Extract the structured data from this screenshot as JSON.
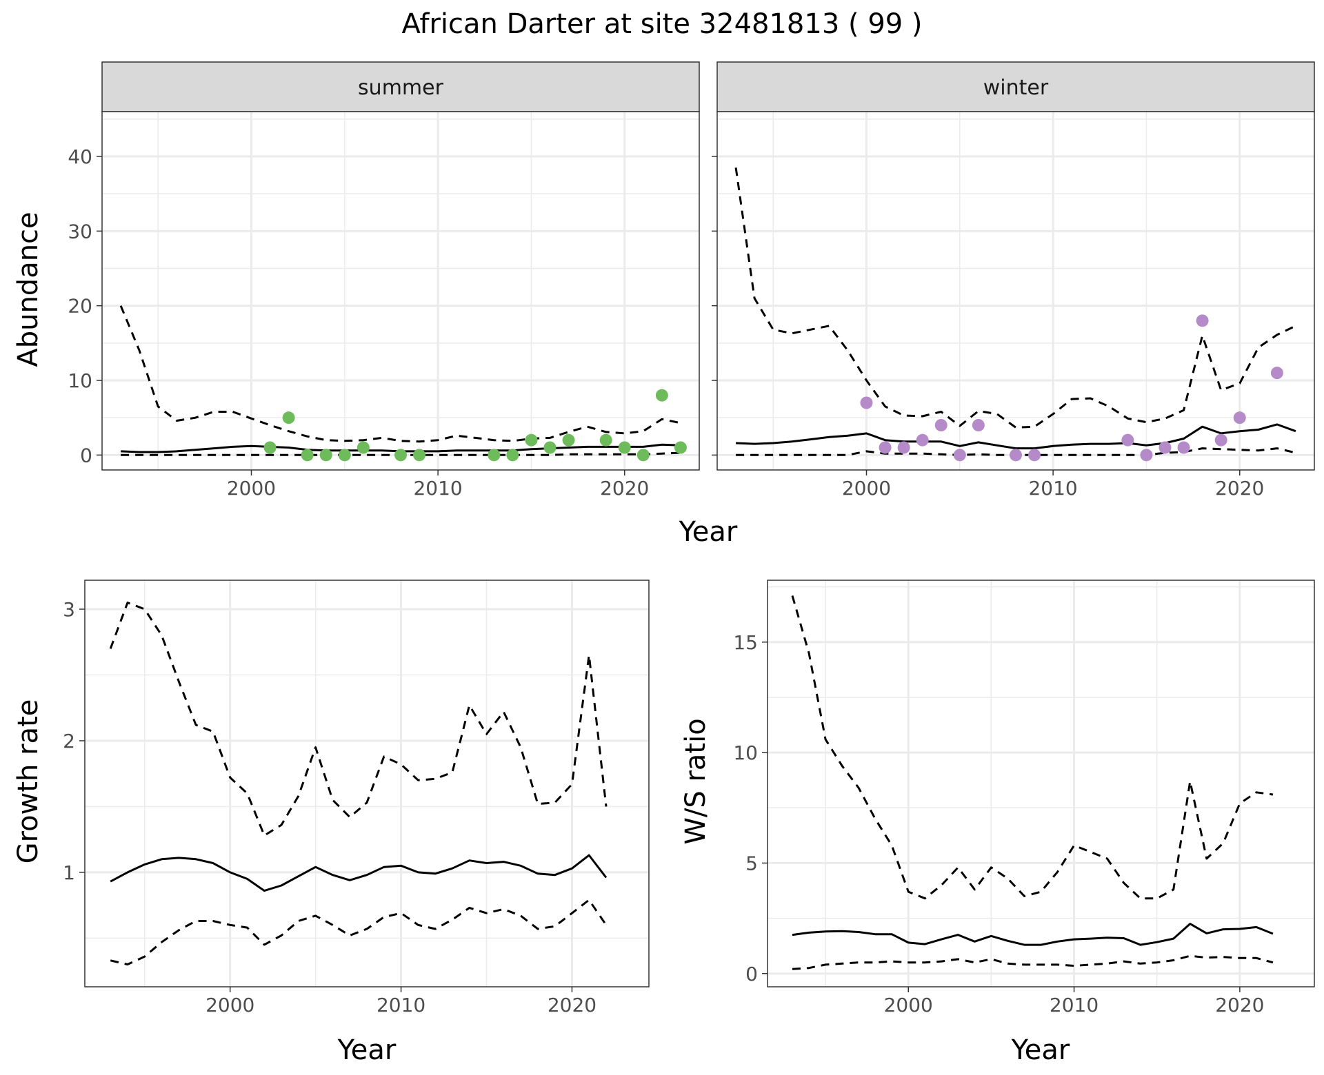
{
  "figure": {
    "title": "African Darter at site 32481813 ( 99 )"
  },
  "colors": {
    "summer_points": "#6dbb5a",
    "winter_points": "#b48ac8",
    "lines": "#000000",
    "grid": "#ebebeb",
    "strip_fill": "#d9d9d9",
    "border": "#333333"
  },
  "chart_data": [
    {
      "type": "line",
      "facet": "summer",
      "xlabel": "Year",
      "ylabel": "Abundance",
      "xlim": [
        1992,
        2024
      ],
      "ylim": [
        -2,
        46
      ],
      "xticks": [
        2000,
        2010,
        2020
      ],
      "yticks": [
        0,
        10,
        20,
        30,
        40
      ],
      "x": [
        1993,
        1994,
        1995,
        1996,
        1997,
        1998,
        1999,
        2000,
        2001,
        2002,
        2003,
        2004,
        2005,
        2006,
        2007,
        2008,
        2009,
        2010,
        2011,
        2012,
        2013,
        2014,
        2015,
        2016,
        2017,
        2018,
        2019,
        2020,
        2021,
        2022,
        2023
      ],
      "median": [
        0.5,
        0.4,
        0.4,
        0.5,
        0.7,
        0.9,
        1.1,
        1.2,
        1.1,
        1.0,
        0.7,
        0.6,
        0.6,
        0.6,
        0.6,
        0.5,
        0.5,
        0.5,
        0.6,
        0.6,
        0.6,
        0.6,
        0.8,
        0.9,
        1.0,
        1.1,
        1.1,
        1.1,
        1.1,
        1.4,
        1.3
      ],
      "upper": [
        20.0,
        14.0,
        6.5,
        4.6,
        5.0,
        5.8,
        5.8,
        4.9,
        4.0,
        3.2,
        2.5,
        2.0,
        1.9,
        2.0,
        2.3,
        1.9,
        1.8,
        2.0,
        2.6,
        2.3,
        2.0,
        1.9,
        2.2,
        2.3,
        3.1,
        3.8,
        3.1,
        2.9,
        3.2,
        4.8,
        4.3
      ],
      "lower": [
        0,
        0,
        0,
        0,
        0,
        0,
        0,
        0,
        0,
        0,
        0,
        0,
        0,
        0,
        0,
        0,
        0,
        0,
        0,
        0,
        0,
        0,
        0,
        0,
        0.1,
        0.1,
        0.1,
        0.1,
        0.1,
        0.2,
        0.3
      ],
      "points": {
        "x": [
          2001,
          2002,
          2003,
          2004,
          2005,
          2006,
          2008,
          2009,
          2013,
          2014,
          2015,
          2016,
          2017,
          2019,
          2020,
          2021,
          2022,
          2023
        ],
        "y": [
          1,
          5,
          0,
          0,
          0,
          1,
          0,
          0,
          0,
          0,
          2,
          1,
          2,
          2,
          1,
          0,
          8,
          1
        ]
      }
    },
    {
      "type": "line",
      "facet": "winter",
      "xlabel": "Year",
      "ylabel": "Abundance",
      "xlim": [
        1992,
        2024
      ],
      "ylim": [
        -2,
        46
      ],
      "xticks": [
        2000,
        2010,
        2020
      ],
      "yticks": [
        0,
        10,
        20,
        30,
        40
      ],
      "x": [
        1993,
        1994,
        1995,
        1996,
        1997,
        1998,
        1999,
        2000,
        2001,
        2002,
        2003,
        2004,
        2005,
        2006,
        2007,
        2008,
        2009,
        2010,
        2011,
        2012,
        2013,
        2014,
        2015,
        2016,
        2017,
        2018,
        2019,
        2020,
        2021,
        2022,
        2023
      ],
      "median": [
        1.6,
        1.5,
        1.6,
        1.8,
        2.1,
        2.4,
        2.6,
        2.9,
        2.0,
        1.8,
        1.8,
        1.8,
        1.2,
        1.7,
        1.3,
        0.9,
        0.9,
        1.2,
        1.4,
        1.5,
        1.5,
        1.6,
        1.3,
        1.6,
        2.2,
        3.8,
        2.9,
        3.2,
        3.4,
        4.1,
        3.2
      ],
      "upper": [
        38.5,
        21.0,
        16.8,
        16.3,
        16.8,
        17.3,
        14.0,
        10.0,
        6.5,
        5.3,
        5.2,
        5.8,
        3.9,
        5.9,
        5.5,
        3.7,
        3.8,
        5.5,
        7.5,
        7.6,
        6.5,
        4.9,
        4.4,
        4.9,
        6.0,
        16.0,
        8.7,
        9.6,
        14.4,
        16.1,
        17.3
      ],
      "lower": [
        0,
        0,
        0,
        0,
        0,
        0,
        0,
        0.5,
        0.2,
        0.2,
        0.2,
        0.1,
        0,
        0.1,
        0,
        0,
        0,
        0,
        0,
        0,
        0,
        0,
        0,
        0.3,
        0.4,
        0.9,
        0.8,
        0.7,
        0.6,
        0.9,
        0.3
      ],
      "points": {
        "x": [
          2000,
          2001,
          2002,
          2003,
          2004,
          2005,
          2006,
          2008,
          2009,
          2014,
          2015,
          2016,
          2017,
          2018,
          2019,
          2020,
          2022
        ],
        "y": [
          7,
          1,
          1,
          2,
          4,
          0,
          4,
          0,
          0,
          2,
          0,
          1,
          1,
          18,
          2,
          5,
          11
        ]
      }
    },
    {
      "type": "line",
      "xlabel": "Year",
      "ylabel": "Growth rate",
      "xlim": [
        1991.5,
        2024.5
      ],
      "ylim": [
        0.13,
        3.22
      ],
      "xticks": [
        2000,
        2010,
        2020
      ],
      "yticks": [
        1,
        2,
        3
      ],
      "x": [
        1993,
        1994,
        1995,
        1996,
        1997,
        1998,
        1999,
        2000,
        2001,
        2002,
        2003,
        2004,
        2005,
        2006,
        2007,
        2008,
        2009,
        2010,
        2011,
        2012,
        2013,
        2014,
        2015,
        2016,
        2017,
        2018,
        2019,
        2020,
        2021,
        2022
      ],
      "median": [
        0.93,
        1.0,
        1.06,
        1.1,
        1.11,
        1.1,
        1.07,
        1.0,
        0.95,
        0.86,
        0.9,
        0.97,
        1.04,
        0.98,
        0.94,
        0.98,
        1.04,
        1.05,
        1.0,
        0.99,
        1.03,
        1.09,
        1.07,
        1.08,
        1.05,
        0.99,
        0.98,
        1.03,
        1.13,
        0.96
      ],
      "upper": [
        2.7,
        3.05,
        3.0,
        2.8,
        2.45,
        2.12,
        2.07,
        1.72,
        1.6,
        1.28,
        1.36,
        1.58,
        1.95,
        1.55,
        1.42,
        1.53,
        1.88,
        1.82,
        1.7,
        1.71,
        1.76,
        2.27,
        2.05,
        2.22,
        1.95,
        1.52,
        1.53,
        1.67,
        2.65,
        1.5
      ],
      "lower": [
        0.33,
        0.3,
        0.36,
        0.47,
        0.56,
        0.63,
        0.63,
        0.6,
        0.58,
        0.45,
        0.52,
        0.63,
        0.67,
        0.6,
        0.52,
        0.57,
        0.66,
        0.69,
        0.6,
        0.57,
        0.64,
        0.73,
        0.69,
        0.72,
        0.67,
        0.57,
        0.59,
        0.69,
        0.79,
        0.6
      ]
    },
    {
      "type": "line",
      "xlabel": "Year",
      "ylabel": "W/S ratio",
      "xlim": [
        1991.5,
        2024.5
      ],
      "ylim": [
        -0.6,
        17.8
      ],
      "xticks": [
        2000,
        2010,
        2020
      ],
      "yticks": [
        0,
        5,
        10,
        15
      ],
      "x": [
        1993,
        1994,
        1995,
        1996,
        1997,
        1998,
        1999,
        2000,
        2001,
        2002,
        2003,
        2004,
        2005,
        2006,
        2007,
        2008,
        2009,
        2010,
        2011,
        2012,
        2013,
        2014,
        2015,
        2016,
        2017,
        2018,
        2019,
        2020,
        2021,
        2022
      ],
      "median": [
        1.75,
        1.85,
        1.9,
        1.92,
        1.88,
        1.78,
        1.78,
        1.4,
        1.33,
        1.55,
        1.75,
        1.45,
        1.7,
        1.48,
        1.3,
        1.3,
        1.45,
        1.55,
        1.58,
        1.62,
        1.6,
        1.3,
        1.42,
        1.58,
        2.25,
        1.82,
        2.0,
        2.02,
        2.1,
        1.8
      ],
      "upper": [
        17.1,
        14.5,
        10.6,
        9.4,
        8.4,
        7.0,
        5.8,
        3.7,
        3.4,
        4.0,
        4.8,
        3.8,
        4.8,
        4.3,
        3.5,
        3.7,
        4.6,
        5.8,
        5.5,
        5.2,
        4.1,
        3.4,
        3.4,
        3.8,
        8.7,
        5.2,
        5.9,
        7.7,
        8.2,
        8.1
      ],
      "lower": [
        0.2,
        0.25,
        0.4,
        0.45,
        0.5,
        0.5,
        0.55,
        0.5,
        0.5,
        0.55,
        0.65,
        0.5,
        0.65,
        0.45,
        0.4,
        0.4,
        0.4,
        0.35,
        0.4,
        0.45,
        0.55,
        0.45,
        0.5,
        0.6,
        0.8,
        0.72,
        0.75,
        0.7,
        0.7,
        0.5
      ]
    }
  ]
}
